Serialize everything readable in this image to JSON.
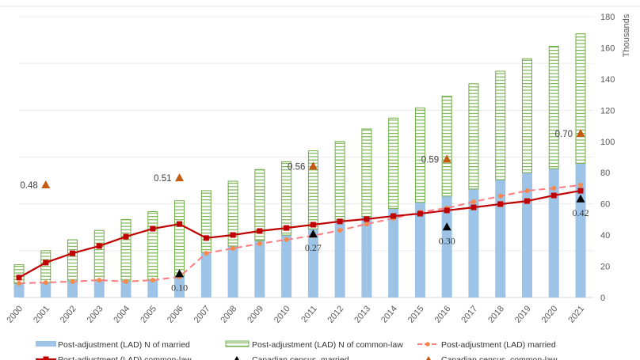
{
  "chart_data": {
    "type": "bar",
    "title": "",
    "x": [
      "2000",
      "2001",
      "2002",
      "2003",
      "2004",
      "2005",
      "2006",
      "2007",
      "2008",
      "2009",
      "2010",
      "2011",
      "2012",
      "2013",
      "2014",
      "2015",
      "2016",
      "2017",
      "2018",
      "2019",
      "2020",
      "2021"
    ],
    "right_axis": {
      "label": "Thousands",
      "range": [
        0,
        180
      ],
      "ticks": [
        0,
        20,
        40,
        60,
        80,
        100,
        120,
        140,
        160,
        180
      ]
    },
    "left_axis": {
      "range": [
        0,
        1.2
      ],
      "tick_labels_shown": false,
      "gridlines": [
        0,
        0.2,
        0.4,
        0.6,
        0.8,
        1.0,
        1.2
      ]
    },
    "grid": true,
    "legend_position": "bottom",
    "bar_series": [
      {
        "name": "Post-adjustment (LAD) N of married",
        "axis": "right",
        "color": "#9dc3e6",
        "values": [
          9,
          9.6,
          10.6,
          11,
          10.6,
          11.5,
          14,
          29,
          33,
          36.5,
          40,
          44,
          50,
          52,
          57,
          61,
          65,
          69.5,
          75.5,
          80,
          82.6,
          86
        ]
      },
      {
        "name": "Post-adjustment (LAD) N of common-law",
        "axis": "right",
        "color": "#70ad47",
        "pattern": "horizontal-hatch",
        "stacked": true,
        "values": [
          12,
          20.4,
          26.4,
          32,
          39.4,
          43.5,
          48,
          39.5,
          41.5,
          45.5,
          47,
          50,
          50,
          56,
          58,
          60.5,
          64,
          67.5,
          69.5,
          73,
          78.4,
          83
        ]
      }
    ],
    "line_series": [
      {
        "name": "Post-adjustment (LAD) married",
        "axis": "left",
        "color": "#ff7c80",
        "marker_color": "#f4894b",
        "style": "dashed",
        "values": [
          0.061,
          0.064,
          0.068,
          0.074,
          0.068,
          0.074,
          0.088,
          0.189,
          0.21,
          0.23,
          0.247,
          0.264,
          0.287,
          0.314,
          0.338,
          0.365,
          0.382,
          0.409,
          0.433,
          0.456,
          0.467,
          0.48
        ]
      },
      {
        "name": "Post-adjustment (LAD) common-law",
        "axis": "left",
        "color": "#c00000",
        "marker": "square",
        "style": "solid",
        "values": [
          0.085,
          0.149,
          0.189,
          0.22,
          0.26,
          0.294,
          0.314,
          0.254,
          0.267,
          0.284,
          0.297,
          0.311,
          0.325,
          0.335,
          0.348,
          0.358,
          0.372,
          0.385,
          0.399,
          0.412,
          0.436,
          0.456
        ]
      }
    ],
    "point_series": [
      {
        "name": "Canadian census, married",
        "axis": "left",
        "color": "#000000",
        "marker": "triangle",
        "points": [
          {
            "x": "2006",
            "y": 0.1,
            "label": "0.10"
          },
          {
            "x": "2011",
            "y": 0.27,
            "label": "0.27"
          },
          {
            "x": "2016",
            "y": 0.3,
            "label": "0.30"
          },
          {
            "x": "2021",
            "y": 0.42,
            "label": "0.42"
          }
        ]
      },
      {
        "name": "Canadian census, common-law",
        "axis": "left",
        "color": "#c55a11",
        "marker": "triangle",
        "points": [
          {
            "x": "2001",
            "y": 0.48,
            "label": "0.48"
          },
          {
            "x": "2006",
            "y": 0.51,
            "label": "0.51"
          },
          {
            "x": "2011",
            "y": 0.56,
            "label": "0.56"
          },
          {
            "x": "2016",
            "y": 0.59,
            "label": "0.59"
          },
          {
            "x": "2021",
            "y": 0.7,
            "label": "0.70"
          }
        ]
      }
    ]
  }
}
